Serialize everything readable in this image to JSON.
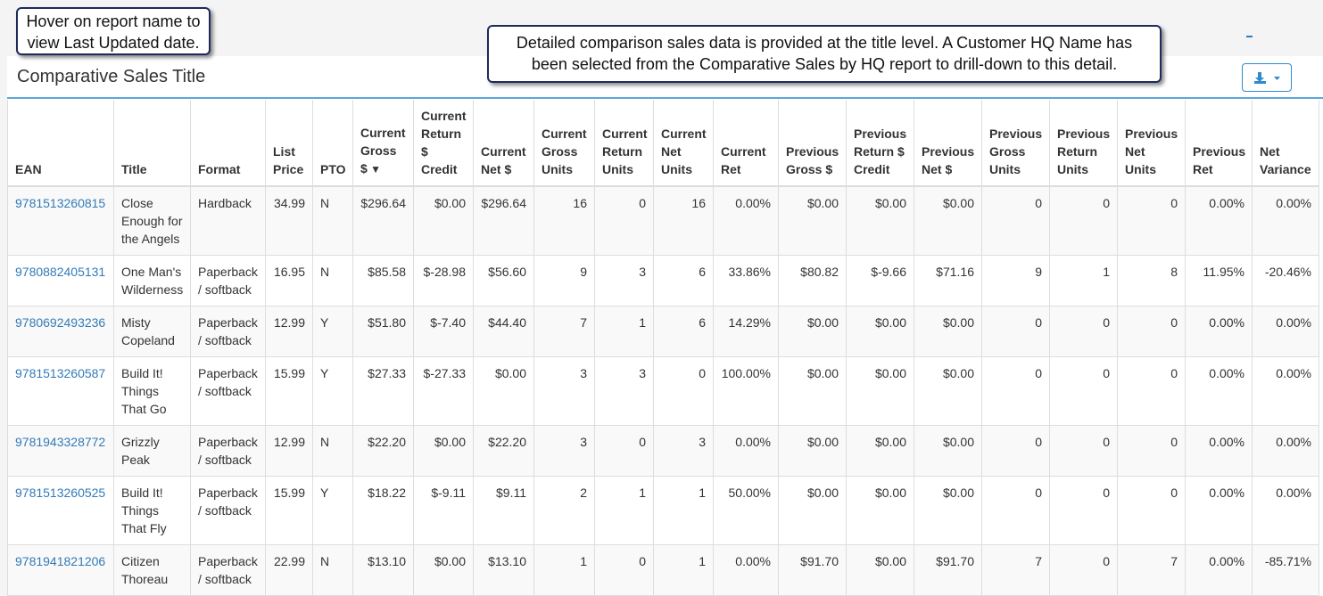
{
  "notes": [
    "Hover on report name to view Last Updated date.",
    "Detailed comparison sales data is provided at the title level.  A Customer HQ Name has been selected from the Comparative Sales by HQ report to drill-down to this detail."
  ],
  "panel": {
    "title": "Comparative Sales Title"
  },
  "table": {
    "columns": [
      "EAN",
      "Title",
      "Format",
      "List Price",
      "PTO",
      "Current Gross $",
      "Current Return $ Credit",
      "Current Net $",
      "Current Gross Units",
      "Current Return Units",
      "Current Net Units",
      "Current Ret",
      "Previous Gross $",
      "Previous Return $ Credit",
      "Previous Net $",
      "Previous Gross Units",
      "Previous Return Units",
      "Previous Net Units",
      "Previous Ret",
      "Net Variance"
    ],
    "rows": [
      [
        "9781513260815",
        "Close Enough for the Angels",
        "Hardback",
        "34.99",
        "N",
        "$296.64",
        "$0.00",
        "$296.64",
        "16",
        "0",
        "16",
        "0.00%",
        "$0.00",
        "$0.00",
        "$0.00",
        "0",
        "0",
        "0",
        "0.00%",
        "0.00%"
      ],
      [
        "9780882405131",
        "One Man's Wilderness",
        "Paperback / softback",
        "16.95",
        "N",
        "$85.58",
        "$-28.98",
        "$56.60",
        "9",
        "3",
        "6",
        "33.86%",
        "$80.82",
        "$-9.66",
        "$71.16",
        "9",
        "1",
        "8",
        "11.95%",
        "-20.46%"
      ],
      [
        "9780692493236",
        "Misty Copeland",
        "Paperback / softback",
        "12.99",
        "Y",
        "$51.80",
        "$-7.40",
        "$44.40",
        "7",
        "1",
        "6",
        "14.29%",
        "$0.00",
        "$0.00",
        "$0.00",
        "0",
        "0",
        "0",
        "0.00%",
        "0.00%"
      ],
      [
        "9781513260587",
        "Build It! Things That Go",
        "Paperback / softback",
        "15.99",
        "Y",
        "$27.33",
        "$-27.33",
        "$0.00",
        "3",
        "3",
        "0",
        "100.00%",
        "$0.00",
        "$0.00",
        "$0.00",
        "0",
        "0",
        "0",
        "0.00%",
        "0.00%"
      ],
      [
        "9781943328772",
        "Grizzly Peak",
        "Paperback / softback",
        "12.99",
        "N",
        "$22.20",
        "$0.00",
        "$22.20",
        "3",
        "0",
        "3",
        "0.00%",
        "$0.00",
        "$0.00",
        "$0.00",
        "0",
        "0",
        "0",
        "0.00%",
        "0.00%"
      ],
      [
        "9781513260525",
        "Build It! Things That Fly",
        "Paperback / softback",
        "15.99",
        "Y",
        "$18.22",
        "$-9.11",
        "$9.11",
        "2",
        "1",
        "1",
        "50.00%",
        "$0.00",
        "$0.00",
        "$0.00",
        "0",
        "0",
        "0",
        "0.00%",
        "0.00%"
      ],
      [
        "9781941821206",
        "Citizen Thoreau",
        "Paperback / softback",
        "22.99",
        "N",
        "$13.10",
        "$0.00",
        "$13.10",
        "1",
        "0",
        "1",
        "0.00%",
        "$91.70",
        "$0.00",
        "$91.70",
        "7",
        "0",
        "7",
        "0.00%",
        "-85.71%"
      ]
    ]
  }
}
